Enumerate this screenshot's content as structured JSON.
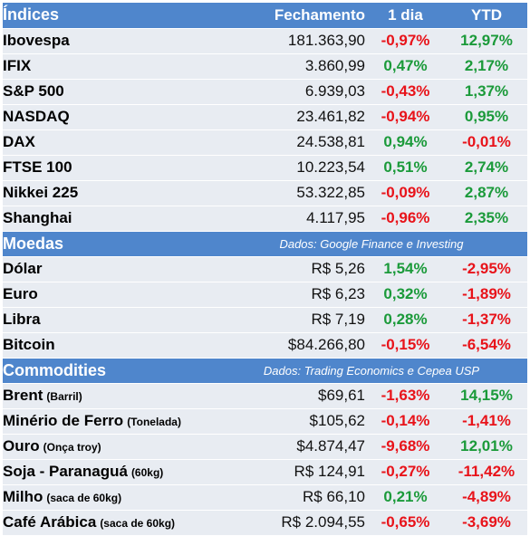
{
  "header": {
    "name": "Índices",
    "close": "Fechamento",
    "day": "1 dia",
    "ytd": "YTD"
  },
  "colors": {
    "header_bg": "#4f86cc",
    "row_bg": "#e8ecf2",
    "negative": "#e8131a",
    "positive": "#1b9a3a"
  },
  "indices": [
    {
      "name": "Ibovespa",
      "close": "181.363,90",
      "day": "-0,97%",
      "ytd": "12,97%"
    },
    {
      "name": "IFIX",
      "close": "3.860,99",
      "day": "0,47%",
      "ytd": "2,17%"
    },
    {
      "name": "S&P 500",
      "close": "6.939,03",
      "day": "-0,43%",
      "ytd": "1,37%"
    },
    {
      "name": "NASDAQ",
      "close": "23.461,82",
      "day": "-0,94%",
      "ytd": "0,95%"
    },
    {
      "name": "DAX",
      "close": "24.538,81",
      "day": "0,94%",
      "ytd": "-0,01%"
    },
    {
      "name": "FTSE 100",
      "close": "10.223,54",
      "day": "0,51%",
      "ytd": "2,74%"
    },
    {
      "name": "Nikkei 225",
      "close": "53.322,85",
      "day": "-0,09%",
      "ytd": "2,87%"
    },
    {
      "name": "Shanghai",
      "close": "4.117,95",
      "day": "-0,96%",
      "ytd": "2,35%"
    }
  ],
  "moedas": {
    "title": "Moedas",
    "source": "Dados: Google Finance e Investing",
    "rows": [
      {
        "name": "Dólar",
        "close": "R$ 5,26",
        "day": "1,54%",
        "ytd": "-2,95%"
      },
      {
        "name": "Euro",
        "close": "R$ 6,23",
        "day": "0,32%",
        "ytd": "-1,89%"
      },
      {
        "name": "Libra",
        "close": "R$ 7,19",
        "day": "0,28%",
        "ytd": "-1,37%"
      },
      {
        "name": "Bitcoin",
        "close": "$84.266,80",
        "day": "-0,15%",
        "ytd": "-6,54%"
      }
    ]
  },
  "commodities": {
    "title": "Commodities",
    "source": "Dados: Trading Economics e Cepea USP",
    "rows": [
      {
        "name": "Brent",
        "unit": "(Barril)",
        "close": "$69,61",
        "day": "-1,63%",
        "ytd": "14,15%"
      },
      {
        "name": "Minério de Ferro",
        "unit": "(Tonelada)",
        "close": "$105,62",
        "day": "-0,14%",
        "ytd": "-1,41%"
      },
      {
        "name": "Ouro",
        "unit": "(Onça troy)",
        "close": "$4.874,47",
        "day": "-9,68%",
        "ytd": "12,01%"
      },
      {
        "name": "Soja - Paranaguá",
        "unit": "(60kg)",
        "close": "R$ 124,91",
        "day": "-0,27%",
        "ytd": "-11,42%"
      },
      {
        "name": "Milho",
        "unit": "(saca de 60kg)",
        "close": "R$ 66,10",
        "day": "0,21%",
        "ytd": "-4,89%"
      },
      {
        "name": "Café Arábica",
        "unit": "(saca de 60kg)",
        "close": "R$ 2.094,55",
        "day": "-0,65%",
        "ytd": "-3,69%"
      }
    ]
  }
}
